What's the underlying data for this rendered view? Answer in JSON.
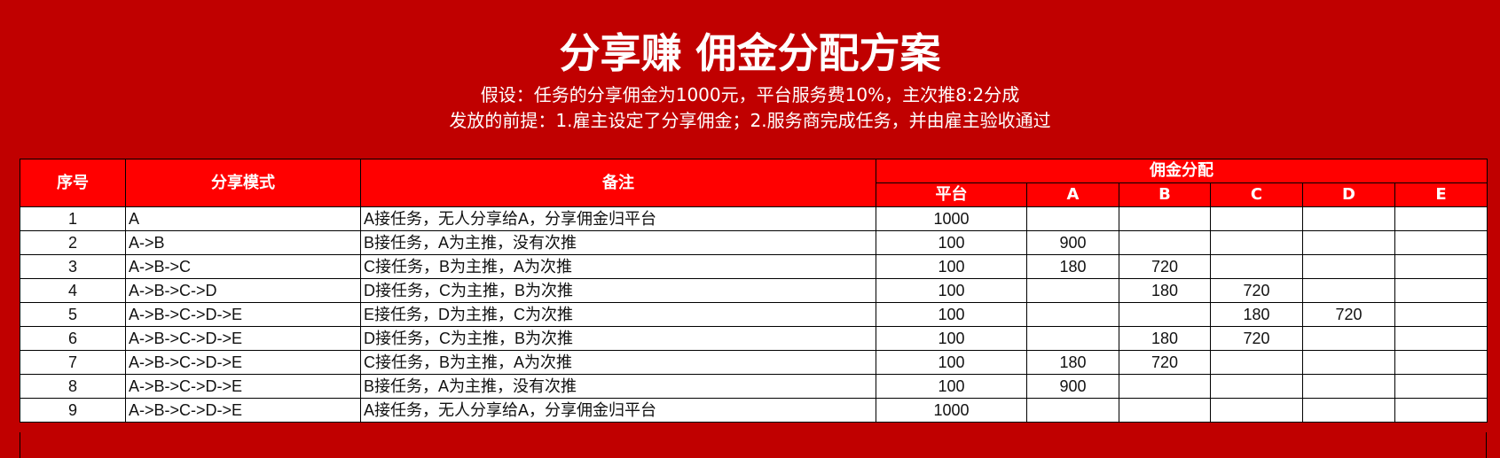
{
  "header": {
    "title": "分享赚 佣金分配方案",
    "assumption": "假设：任务的分享佣金为1000元，平台服务费10%，主次推8:2分成",
    "precondition": "发放的前提：1.雇主设定了分享佣金；2.服务商完成任务，并由雇主验收通过"
  },
  "table": {
    "headers": {
      "index": "序号",
      "mode": "分享模式",
      "note": "备注",
      "group": "佣金分配",
      "cols": [
        "平台",
        "A",
        "B",
        "C",
        "D",
        "E"
      ]
    },
    "rows": [
      {
        "index": "1",
        "mode": "A",
        "note": "A接任务，无人分享给A，分享佣金归平台",
        "vals": [
          "1000",
          "",
          "",
          "",
          "",
          ""
        ]
      },
      {
        "index": "2",
        "mode": "A->B",
        "note": "B接任务，A为主推，没有次推",
        "vals": [
          "100",
          "900",
          "",
          "",
          "",
          ""
        ]
      },
      {
        "index": "3",
        "mode": "A->B->C",
        "note": "C接任务，B为主推，A为次推",
        "vals": [
          "100",
          "180",
          "720",
          "",
          "",
          ""
        ]
      },
      {
        "index": "4",
        "mode": "A->B->C->D",
        "note": "D接任务，C为主推，B为次推",
        "vals": [
          "100",
          "",
          "180",
          "720",
          "",
          ""
        ]
      },
      {
        "index": "5",
        "mode": "A->B->C->D->E",
        "note": "E接任务，D为主推，C为次推",
        "vals": [
          "100",
          "",
          "",
          "180",
          "720",
          ""
        ]
      },
      {
        "index": "6",
        "mode": "A->B->C->D->E",
        "note": "D接任务，C为主推，B为次推",
        "vals": [
          "100",
          "",
          "180",
          "720",
          "",
          ""
        ]
      },
      {
        "index": "7",
        "mode": "A->B->C->D->E",
        "note": "C接任务，B为主推，A为次推",
        "vals": [
          "100",
          "180",
          "720",
          "",
          "",
          ""
        ]
      },
      {
        "index": "8",
        "mode": "A->B->C->D->E",
        "note": "B接任务，A为主推，没有次推",
        "vals": [
          "100",
          "900",
          "",
          "",
          "",
          ""
        ]
      },
      {
        "index": "9",
        "mode": "A->B->C->D->E",
        "note": "A接任务，无人分享给A，分享佣金归平台",
        "vals": [
          "1000",
          "",
          "",
          "",
          "",
          ""
        ]
      }
    ]
  },
  "colors": {
    "background": "#C00000",
    "header": "#FF0000"
  }
}
